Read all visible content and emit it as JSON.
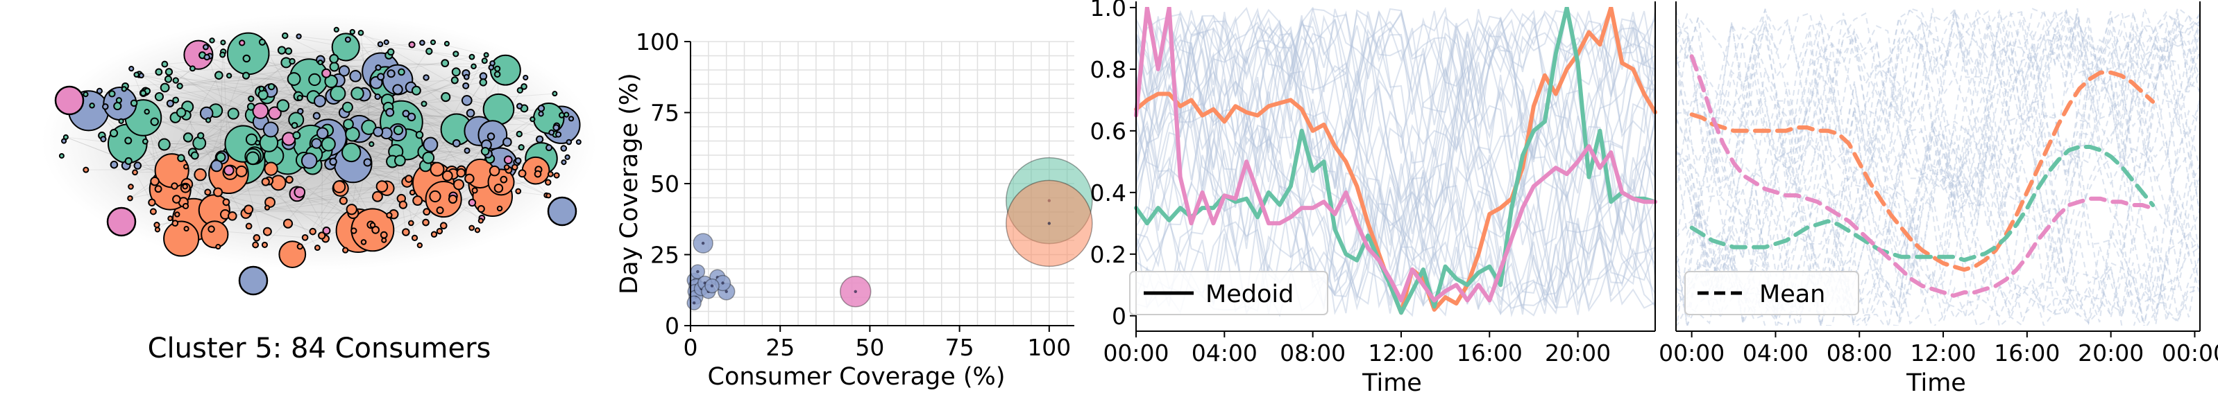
{
  "colors": {
    "green": "#66c2a5",
    "orange": "#fc8d62",
    "blue": "#8da0cb",
    "pink": "#e78ac3",
    "grid": "#e0e0e0",
    "background_lines": "#b4c3dc"
  },
  "network_panel": {
    "caption": "Cluster 5: 84 Consumers"
  },
  "chart_data": [
    {
      "type": "scatter",
      "xlabel": "Consumer Coverage (%)",
      "ylabel": "Day Coverage (%)",
      "xlim": [
        0,
        107
      ],
      "ylim": [
        0,
        100
      ],
      "xticks": [
        0,
        25,
        50,
        75,
        100
      ],
      "yticks": [
        0,
        25,
        50,
        75,
        100
      ],
      "grid": true,
      "points": [
        {
          "x": 3.5,
          "y": 29,
          "size": 14,
          "color": "blue"
        },
        {
          "x": 1.0,
          "y": 16,
          "size": 10,
          "color": "blue"
        },
        {
          "x": 1.5,
          "y": 14,
          "size": 10,
          "color": "blue"
        },
        {
          "x": 1.2,
          "y": 12,
          "size": 10,
          "color": "blue"
        },
        {
          "x": 1.5,
          "y": 10,
          "size": 10,
          "color": "blue"
        },
        {
          "x": 1.0,
          "y": 8,
          "size": 10,
          "color": "blue"
        },
        {
          "x": 2.0,
          "y": 19,
          "size": 10,
          "color": "blue"
        },
        {
          "x": 3.0,
          "y": 13,
          "size": 10,
          "color": "blue"
        },
        {
          "x": 4.0,
          "y": 15,
          "size": 10,
          "color": "blue"
        },
        {
          "x": 5.0,
          "y": 12,
          "size": 10,
          "color": "blue"
        },
        {
          "x": 6.0,
          "y": 14,
          "size": 10,
          "color": "blue"
        },
        {
          "x": 7.5,
          "y": 17,
          "size": 11,
          "color": "blue"
        },
        {
          "x": 9.0,
          "y": 15,
          "size": 11,
          "color": "blue"
        },
        {
          "x": 10.0,
          "y": 12,
          "size": 12,
          "color": "blue"
        },
        {
          "x": 46.0,
          "y": 12,
          "size": 22,
          "color": "pink"
        },
        {
          "x": 100,
          "y": 44,
          "size": 62,
          "color": "green"
        },
        {
          "x": 100,
          "y": 36,
          "size": 62,
          "color": "orange"
        }
      ]
    },
    {
      "type": "line",
      "xlabel": "Time",
      "ylabel": "",
      "xlim": [
        0,
        47
      ],
      "ylim": [
        -0.05,
        1.02
      ],
      "xtick_labels": [
        "00:00",
        "04:00",
        "08:00",
        "12:00",
        "16:00",
        "20:00"
      ],
      "xtick_positions": [
        0,
        8,
        16,
        24,
        32,
        40
      ],
      "yticks": [
        0,
        0.2,
        0.4,
        0.6,
        0.8,
        1.0
      ],
      "legend": {
        "label": "Medoid",
        "placement": "lower-left",
        "style": "solid"
      },
      "series": [
        {
          "color": "orange",
          "values": [
            0.67,
            0.7,
            0.72,
            0.72,
            0.68,
            0.7,
            0.65,
            0.67,
            0.63,
            0.68,
            0.66,
            0.65,
            0.68,
            0.69,
            0.7,
            0.67,
            0.6,
            0.62,
            0.55,
            0.5,
            0.42,
            0.3,
            0.2,
            0.1,
            0.01,
            0.15,
            0.12,
            0.02,
            0.06,
            0.04,
            0.1,
            0.2,
            0.33,
            0.35,
            0.38,
            0.48,
            0.68,
            0.78,
            0.72,
            0.8,
            0.85,
            0.92,
            0.88,
            1.0,
            0.82,
            0.8,
            0.72,
            0.66
          ]
        },
        {
          "color": "green",
          "values": [
            0.35,
            0.3,
            0.35,
            0.31,
            0.35,
            0.32,
            0.35,
            0.35,
            0.39,
            0.37,
            0.38,
            0.32,
            0.4,
            0.36,
            0.42,
            0.6,
            0.47,
            0.5,
            0.28,
            0.2,
            0.18,
            0.26,
            0.18,
            0.1,
            0.01,
            0.08,
            0.15,
            0.03,
            0.16,
            0.12,
            0.1,
            0.14,
            0.16,
            0.1,
            0.35,
            0.52,
            0.6,
            0.63,
            0.85,
            1.0,
            0.82,
            0.45,
            0.6,
            0.37,
            0.4,
            0.38,
            0.38,
            0.37
          ]
        },
        {
          "color": "pink",
          "values": [
            0.65,
            1.0,
            0.8,
            1.0,
            0.45,
            0.3,
            0.4,
            0.3,
            0.39,
            0.38,
            0.5,
            0.4,
            0.3,
            0.3,
            0.32,
            0.35,
            0.35,
            0.37,
            0.33,
            0.4,
            0.3,
            0.22,
            0.18,
            0.12,
            0.05,
            0.15,
            0.1,
            0.05,
            0.08,
            0.1,
            0.05,
            0.1,
            0.05,
            0.15,
            0.25,
            0.35,
            0.42,
            0.45,
            0.48,
            0.46,
            0.5,
            0.55,
            0.48,
            0.53,
            0.4,
            0.38,
            0.37,
            0.37
          ]
        }
      ]
    },
    {
      "type": "line",
      "xlabel": "Time",
      "ylabel": "",
      "xlim": [
        -1.5,
        48.5
      ],
      "ylim": [
        0.0,
        1.02
      ],
      "xtick_labels": [
        "00:00",
        "04:00",
        "08:00",
        "12:00",
        "16:00",
        "20:00",
        "00:00"
      ],
      "xtick_positions": [
        0,
        8,
        16,
        24,
        32,
        40,
        48
      ],
      "legend": {
        "label": "Mean",
        "placement": "lower-left",
        "style": "dashed"
      },
      "series": [
        {
          "color": "orange",
          "values": [
            0.67,
            0.66,
            0.64,
            0.63,
            0.62,
            0.62,
            0.62,
            0.62,
            0.62,
            0.62,
            0.63,
            0.63,
            0.62,
            0.62,
            0.61,
            0.58,
            0.52,
            0.46,
            0.41,
            0.36,
            0.32,
            0.28,
            0.25,
            0.23,
            0.21,
            0.2,
            0.19,
            0.2,
            0.22,
            0.25,
            0.3,
            0.36,
            0.43,
            0.5,
            0.57,
            0.64,
            0.7,
            0.75,
            0.78,
            0.8,
            0.8,
            0.79,
            0.77,
            0.74,
            0.71
          ]
        },
        {
          "color": "green",
          "values": [
            0.32,
            0.3,
            0.28,
            0.27,
            0.26,
            0.26,
            0.26,
            0.26,
            0.27,
            0.28,
            0.3,
            0.32,
            0.33,
            0.34,
            0.33,
            0.31,
            0.29,
            0.27,
            0.25,
            0.24,
            0.23,
            0.23,
            0.23,
            0.23,
            0.23,
            0.23,
            0.22,
            0.23,
            0.24,
            0.26,
            0.29,
            0.33,
            0.38,
            0.44,
            0.49,
            0.53,
            0.56,
            0.57,
            0.57,
            0.56,
            0.54,
            0.51,
            0.47,
            0.43,
            0.39
          ]
        },
        {
          "color": "pink",
          "values": [
            0.85,
            0.76,
            0.66,
            0.58,
            0.52,
            0.48,
            0.46,
            0.44,
            0.43,
            0.42,
            0.42,
            0.41,
            0.4,
            0.38,
            0.36,
            0.34,
            0.31,
            0.28,
            0.25,
            0.22,
            0.19,
            0.16,
            0.14,
            0.13,
            0.12,
            0.11,
            0.12,
            0.12,
            0.13,
            0.14,
            0.16,
            0.19,
            0.23,
            0.28,
            0.32,
            0.36,
            0.39,
            0.4,
            0.41,
            0.41,
            0.4,
            0.4,
            0.39,
            0.39,
            0.38
          ]
        }
      ]
    }
  ]
}
